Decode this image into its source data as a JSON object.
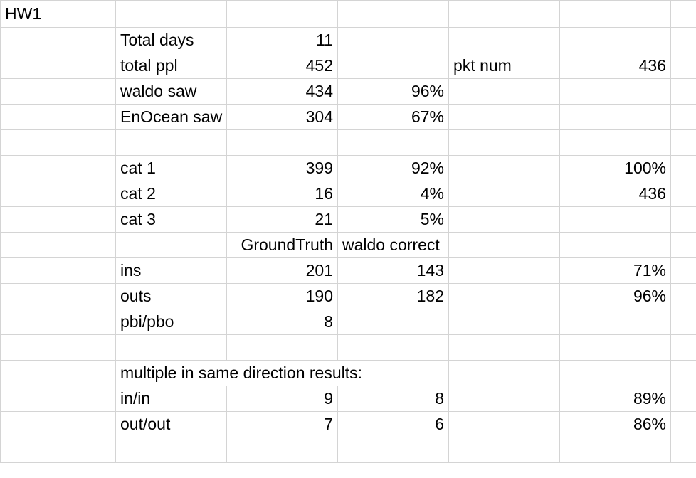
{
  "sheet": {
    "title_cell": "HW1",
    "rows": [
      {
        "label": "Total days",
        "b": "11",
        "c": "",
        "d": "",
        "e": ""
      },
      {
        "label": "total ppl",
        "b": "452",
        "c": "",
        "d": "pkt num",
        "e": "436"
      },
      {
        "label": "waldo saw",
        "b": "434",
        "c": "96%",
        "d": "",
        "e": ""
      },
      {
        "label": "EnOcean saw",
        "b": "304",
        "c": "67%",
        "d": "",
        "e": ""
      },
      {
        "label": "",
        "b": "",
        "c": "",
        "d": "",
        "e": ""
      },
      {
        "label": "cat 1",
        "b": "399",
        "c": "92%",
        "d": "",
        "e": "100%"
      },
      {
        "label": "cat 2",
        "b": "16",
        "c": "4%",
        "d": "",
        "e": "436"
      },
      {
        "label": "cat 3",
        "b": "21",
        "c": "5%",
        "d": "",
        "e": ""
      },
      {
        "label": "",
        "b": "GroundTruth",
        "c": "waldo correct",
        "d": "",
        "e": ""
      },
      {
        "label": "ins",
        "b": "201",
        "c": "143",
        "d": "",
        "e": "71%"
      },
      {
        "label": "outs",
        "b": "190",
        "c": "182",
        "d": "",
        "e": "96%"
      },
      {
        "label": "pbi/pbo",
        "b": "8",
        "c": "",
        "d": "",
        "e": ""
      },
      {
        "label": "",
        "b": "",
        "c": "",
        "d": "",
        "e": ""
      },
      {
        "label": "multiple in same direction results:",
        "b": "",
        "c": "",
        "d": "",
        "e": ""
      },
      {
        "label": "in/in",
        "b": "9",
        "c": "8",
        "d": "",
        "e": "89%"
      },
      {
        "label": "out/out",
        "b": "7",
        "c": "6",
        "d": "",
        "e": "86%"
      }
    ]
  }
}
